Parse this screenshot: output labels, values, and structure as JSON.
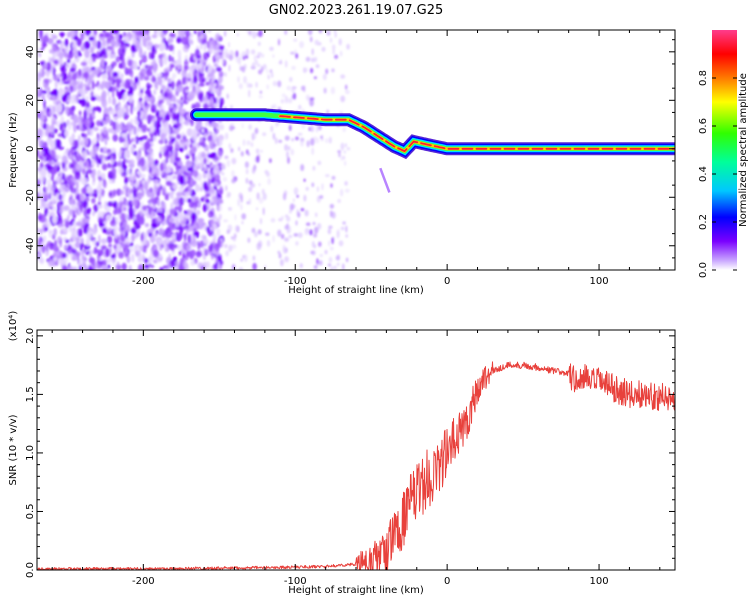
{
  "title": "GN02.2023.261.19.07.G25",
  "chart_data": [
    {
      "type": "heatmap",
      "xlabel": "Height of straight line (km)",
      "ylabel": "Frequency (Hz)",
      "xlim": [
        -270,
        150
      ],
      "ylim": [
        -50,
        49
      ],
      "xticks": [
        -200,
        -100,
        0,
        100
      ],
      "yticks": [
        -40,
        -20,
        0,
        20,
        40
      ],
      "colorbar": {
        "label": "Normalized spectral amplitude",
        "range": [
          0,
          1
        ],
        "ticks": [
          0.0,
          0.2,
          0.4,
          0.6,
          0.8
        ],
        "tick_labels": [
          "0.0",
          "0.2",
          "0.4",
          "0.6",
          "0.8"
        ],
        "colormap": "hsv-rainbow (white-purple-blue-cyan-green-yellow-red-magenta)"
      },
      "ridge": {
        "description": "dominant frequency track",
        "x": [
          -165,
          -140,
          -120,
          -100,
          -80,
          -65,
          -55,
          -45,
          -35,
          -28,
          -22,
          -15,
          0,
          50,
          100,
          150
        ],
        "y": [
          14,
          14,
          14,
          13,
          12,
          12,
          9,
          5,
          1,
          -1,
          3,
          2,
          0,
          0,
          0,
          0
        ]
      },
      "noise_region_x": [
        -270,
        -80
      ]
    },
    {
      "type": "line",
      "xlabel": "Height of straight line (km)",
      "ylabel": "SNR (10 * v/v)",
      "yscale_label": "(x10⁴)",
      "xlim": [
        -270,
        150
      ],
      "ylim": [
        0,
        2.05
      ],
      "xticks": [
        -200,
        -100,
        0,
        100
      ],
      "yticks": [
        0.0,
        0.5,
        1.0,
        1.5,
        2.0
      ],
      "ytick_labels": [
        "0.0",
        "0.5",
        "1.0",
        "1.5",
        "2.0"
      ],
      "series": [
        {
          "color": "#e8413c",
          "x": [
            -270,
            -200,
            -120,
            -80,
            -60,
            -50,
            -40,
            -35,
            -30,
            -25,
            -20,
            -15,
            -10,
            -5,
            0,
            5,
            10,
            15,
            20,
            25,
            30,
            40,
            50,
            60,
            70,
            80,
            85,
            90,
            95,
            100,
            105,
            110,
            120,
            130,
            140,
            150
          ],
          "y": [
            0.01,
            0.01,
            0.02,
            0.03,
            0.05,
            0.08,
            0.15,
            0.3,
            0.4,
            0.55,
            0.65,
            0.75,
            0.8,
            0.9,
            1.0,
            1.1,
            1.2,
            1.35,
            1.55,
            1.65,
            1.7,
            1.75,
            1.75,
            1.73,
            1.7,
            1.68,
            1.6,
            1.65,
            1.6,
            1.62,
            1.58,
            1.55,
            1.5,
            1.5,
            1.48,
            1.45
          ]
        }
      ]
    }
  ]
}
